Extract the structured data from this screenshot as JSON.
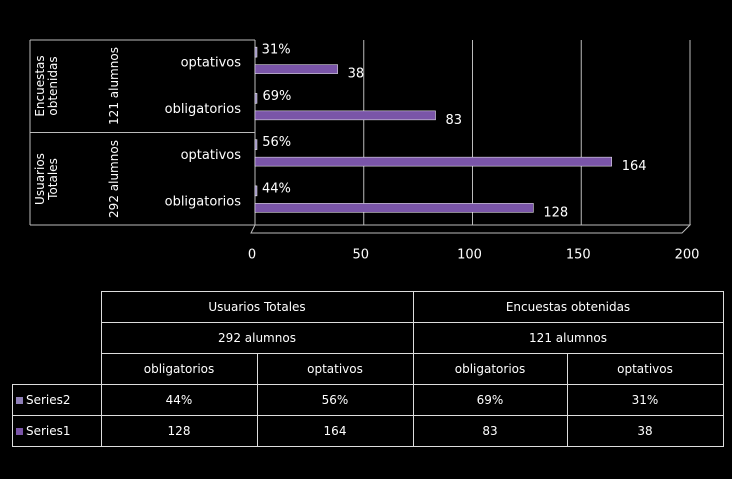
{
  "chart_data": {
    "type": "bar",
    "orientation": "horizontal",
    "groups": [
      {
        "label": "Usuarios Totales",
        "sublabel": "292 alumnos"
      },
      {
        "label": "Encuestas obtenidas",
        "sublabel": "121 alumnos"
      }
    ],
    "categories": [
      "obligatorios",
      "optativos",
      "obligatorios",
      "optativos"
    ],
    "series": [
      {
        "name": "Series2",
        "color": "#8f80b8",
        "values": [
          0.44,
          0.56,
          0.69,
          0.31
        ],
        "value_labels": [
          "44%",
          "56%",
          "69%",
          "31%"
        ]
      },
      {
        "name": "Series1",
        "color": "#7a55a8",
        "values": [
          128,
          164,
          83,
          38
        ]
      }
    ],
    "xlim": [
      0,
      200
    ],
    "xticks": [
      0,
      50,
      100,
      150,
      200
    ],
    "grid": true,
    "legend": "table"
  }
}
